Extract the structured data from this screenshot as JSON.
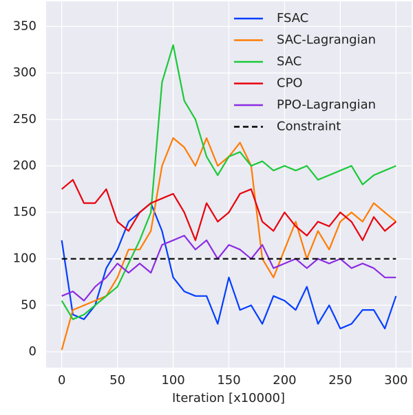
{
  "chart_data": {
    "type": "line",
    "xlabel": "Iteration [x10000]",
    "x": [
      0,
      10,
      20,
      30,
      40,
      50,
      60,
      70,
      80,
      90,
      100,
      110,
      120,
      130,
      140,
      150,
      160,
      170,
      180,
      190,
      200,
      210,
      220,
      230,
      240,
      250,
      260,
      270,
      280,
      290,
      300
    ],
    "series": [
      {
        "name": "FSAC",
        "color": "#023eff",
        "values": [
          120,
          40,
          35,
          50,
          90,
          110,
          140,
          150,
          160,
          130,
          80,
          65,
          60,
          60,
          30,
          80,
          45,
          50,
          30,
          60,
          55,
          45,
          70,
          30,
          50,
          25,
          30,
          45,
          45,
          25,
          60
        ]
      },
      {
        "name": "SAC-Lagrangian",
        "color": "#ff7c00",
        "values": [
          2,
          45,
          50,
          55,
          60,
          80,
          110,
          110,
          130,
          200,
          230,
          220,
          200,
          230,
          200,
          210,
          225,
          200,
          100,
          80,
          110,
          140,
          100,
          130,
          110,
          140,
          150,
          140,
          160,
          150,
          140
        ]
      },
      {
        "name": "SAC",
        "color": "#1ac938",
        "values": [
          55,
          35,
          40,
          50,
          60,
          70,
          95,
          120,
          150,
          290,
          330,
          270,
          250,
          210,
          190,
          210,
          215,
          200,
          205,
          195,
          200,
          195,
          200,
          185,
          190,
          195,
          200,
          180,
          190,
          195,
          200
        ]
      },
      {
        "name": "CPO",
        "color": "#e8000b",
        "values": [
          175,
          185,
          160,
          160,
          175,
          140,
          130,
          150,
          160,
          165,
          170,
          150,
          120,
          160,
          140,
          150,
          170,
          175,
          140,
          130,
          150,
          135,
          125,
          140,
          135,
          150,
          140,
          120,
          145,
          130,
          140
        ]
      },
      {
        "name": "PPO-Lagrangian",
        "color": "#8b2be2",
        "values": [
          60,
          65,
          55,
          70,
          80,
          95,
          85,
          95,
          85,
          115,
          120,
          125,
          110,
          120,
          100,
          115,
          110,
          100,
          115,
          90,
          95,
          100,
          90,
          100,
          95,
          100,
          90,
          95,
          90,
          80,
          80
        ]
      },
      {
        "name": "Constraint",
        "color": "#000000",
        "style": "dashed",
        "x": [
          0,
          300
        ],
        "values": [
          100,
          100
        ]
      }
    ],
    "xlim": [
      -14,
      314
    ],
    "ylim": [
      -17,
      377
    ],
    "xticks": [
      0,
      50,
      100,
      150,
      200,
      250,
      300
    ],
    "yticks": [
      0,
      50,
      100,
      150,
      200,
      250,
      300,
      350
    ],
    "grid": true,
    "legend": "upper right"
  }
}
